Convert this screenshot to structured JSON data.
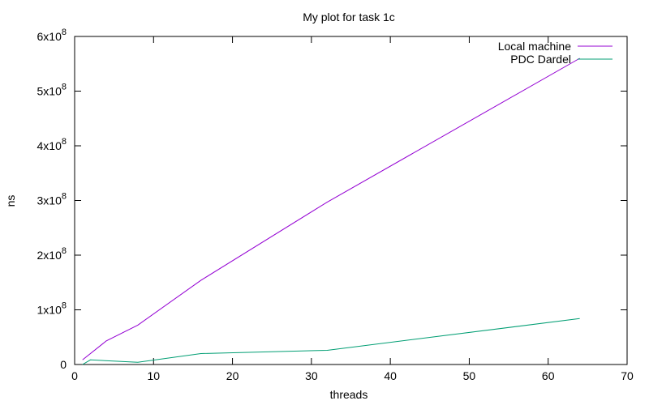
{
  "chart_data": {
    "type": "line",
    "title": "My plot for task 1c",
    "xlabel": "threads",
    "ylabel": "ns",
    "xlim": [
      0,
      70
    ],
    "ylim": [
      0,
      600000000
    ],
    "x_ticks": [
      0,
      10,
      20,
      30,
      40,
      50,
      60,
      70
    ],
    "y_ticks": [
      {
        "value": 0,
        "label": "0",
        "exp": ""
      },
      {
        "value": 100000000,
        "label": "1x10",
        "exp": "8"
      },
      {
        "value": 200000000,
        "label": "2x10",
        "exp": "8"
      },
      {
        "value": 300000000,
        "label": "3x10",
        "exp": "8"
      },
      {
        "value": 400000000,
        "label": "4x10",
        "exp": "8"
      },
      {
        "value": 500000000,
        "label": "5x10",
        "exp": "8"
      },
      {
        "value": 600000000,
        "label": "6x10",
        "exp": "8"
      }
    ],
    "grid": false,
    "legend_position": "top-right",
    "series": [
      {
        "name": "Local machine",
        "color": "#9400d3",
        "x": [
          1,
          4,
          8,
          16,
          32,
          64
        ],
        "y": [
          8500000,
          43000000,
          72000000,
          154000000,
          297000000,
          560000000
        ]
      },
      {
        "name": "PDC Dardel",
        "color": "#009e73",
        "x": [
          1,
          2,
          8,
          16,
          32,
          64
        ],
        "y": [
          0,
          8500000,
          4000000,
          20000000,
          26000000,
          84000000
        ]
      }
    ]
  }
}
